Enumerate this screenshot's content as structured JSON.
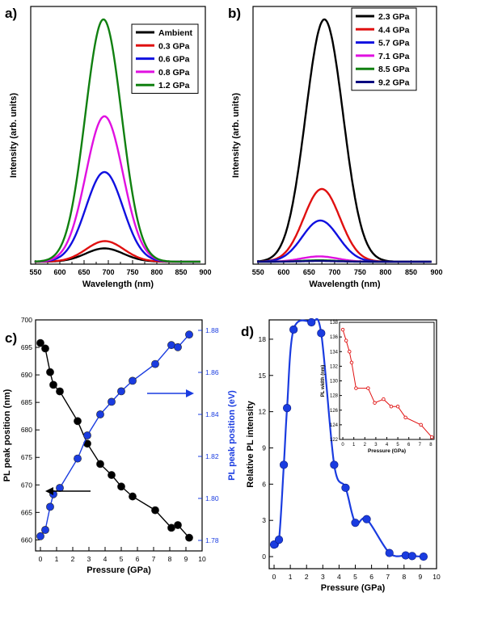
{
  "chart_data": [
    {
      "panel": "a)",
      "type": "line",
      "xlabel": "Wavelength (nm)",
      "ylabel": "Intensity (arb. units)",
      "xlim": [
        540,
        900
      ],
      "xticks": [
        550,
        600,
        650,
        700,
        750,
        800,
        850,
        900
      ],
      "grid": false,
      "legend_position": "top-right",
      "series": [
        {
          "name": "Ambient",
          "color": "#000000",
          "peak_x": 692,
          "width": 55,
          "peak_rel": 0.055
        },
        {
          "name": "0.3 GPa",
          "color": "#e01010",
          "peak_x": 693,
          "width": 55,
          "peak_rel": 0.085
        },
        {
          "name": "0.6 GPa",
          "color": "#1010e0",
          "peak_x": 692,
          "width": 54,
          "peak_rel": 0.37
        },
        {
          "name": "0.8 GPa",
          "color": "#e010e0",
          "peak_x": 692,
          "width": 54,
          "peak_rel": 0.6
        },
        {
          "name": "1.2 GPa",
          "color": "#108010",
          "peak_x": 690,
          "width": 53,
          "peak_rel": 1.0
        }
      ]
    },
    {
      "panel": "b)",
      "type": "line",
      "xlabel": "Wavelength (nm)",
      "ylabel": "Intensity (arb. units)",
      "xlim": [
        540,
        900
      ],
      "xticks": [
        550,
        600,
        650,
        700,
        750,
        800,
        850,
        900
      ],
      "grid": false,
      "legend_position": "top-right",
      "series": [
        {
          "name": "2.3 GPa",
          "color": "#000000",
          "peak_x": 680,
          "width": 52,
          "peak_rel": 1.0
        },
        {
          "name": "4.4 GPa",
          "color": "#e01010",
          "peak_x": 675,
          "width": 50,
          "peak_rel": 0.3
        },
        {
          "name": "5.7 GPa",
          "color": "#1010e0",
          "peak_x": 672,
          "width": 50,
          "peak_rel": 0.17
        },
        {
          "name": "7.1 GPa",
          "color": "#e010e0",
          "peak_x": 670,
          "width": 50,
          "peak_rel": 0.022
        },
        {
          "name": "8.5 GPa",
          "color": "#108010",
          "peak_x": 670,
          "width": 50,
          "peak_rel": 0.006
        },
        {
          "name": "9.2 GPa",
          "color": "#0a0a80",
          "peak_x": 670,
          "width": 50,
          "peak_rel": 0.003
        }
      ]
    },
    {
      "panel": "c)",
      "type": "scatter",
      "xlabel": "Pressure (GPa)",
      "ylabel": "PL peak position (nm)",
      "y2label": "PL peak position (eV)",
      "xlim": [
        -0.3,
        10
      ],
      "ylim": [
        658,
        700
      ],
      "y2lim": [
        1.775,
        1.885
      ],
      "xticks": [
        0,
        1,
        2,
        3,
        4,
        5,
        6,
        7,
        8,
        9,
        10
      ],
      "yticks": [
        660,
        665,
        670,
        675,
        680,
        685,
        690,
        695,
        700
      ],
      "y2ticks": [
        1.78,
        1.8,
        1.82,
        1.84,
        1.86,
        1.88
      ],
      "grid": false,
      "series": [
        {
          "name": "PL peak position (nm)",
          "axis": "left",
          "color": "#000000",
          "x": [
            0.0,
            0.3,
            0.6,
            0.8,
            1.2,
            2.3,
            2.9,
            3.7,
            4.4,
            5.0,
            5.7,
            7.1,
            8.1,
            8.5,
            9.2
          ],
          "y": [
            695.8,
            694.8,
            690.5,
            688.2,
            687.0,
            681.6,
            677.5,
            673.8,
            671.8,
            669.7,
            667.9,
            665.4,
            662.2,
            662.7,
            660.4
          ]
        },
        {
          "name": "PL peak position (eV)",
          "axis": "right",
          "color": "#1a3ce0",
          "x": [
            0.0,
            0.3,
            0.6,
            0.8,
            1.2,
            2.3,
            2.9,
            3.7,
            4.4,
            5.0,
            5.7,
            7.1,
            8.1,
            8.5,
            9.2
          ],
          "y": [
            1.782,
            1.785,
            1.796,
            1.802,
            1.805,
            1.819,
            1.83,
            1.84,
            1.846,
            1.851,
            1.856,
            1.864,
            1.873,
            1.872,
            1.878
          ]
        }
      ]
    },
    {
      "panel": "d)",
      "type": "scatter",
      "xlabel": "Pressure (GPa)",
      "ylabel": "Relative PL intensity",
      "xlim": [
        -0.3,
        10
      ],
      "ylim": [
        -1,
        19.6
      ],
      "xticks": [
        0,
        1,
        2,
        3,
        4,
        5,
        6,
        7,
        8,
        9,
        10
      ],
      "yticks": [
        0,
        3,
        6,
        9,
        12,
        15,
        18
      ],
      "grid": false,
      "series": [
        {
          "name": "Relative PL intensity",
          "color": "#1a3ce0",
          "x": [
            0.0,
            0.3,
            0.6,
            0.8,
            1.2,
            2.3,
            2.9,
            3.7,
            4.4,
            5.0,
            5.7,
            7.1,
            8.1,
            8.5,
            9.2
          ],
          "y": [
            1.0,
            1.4,
            7.6,
            12.3,
            18.8,
            19.4,
            18.5,
            7.6,
            5.7,
            2.8,
            3.1,
            0.3,
            0.1,
            0.05,
            0.0
          ]
        }
      ],
      "inset": {
        "type": "line",
        "xlabel": "Pressure (GPa)",
        "ylabel": "PL width (nm)",
        "xlim": [
          -0.3,
          8.3
        ],
        "ylim": [
          122,
          138
        ],
        "xticks": [
          0,
          1,
          2,
          3,
          4,
          5,
          6,
          7,
          8
        ],
        "yticks": [
          122,
          124,
          126,
          128,
          130,
          132,
          134,
          136,
          138
        ],
        "color": "#e01010",
        "x": [
          0.0,
          0.3,
          0.6,
          0.8,
          1.2,
          2.3,
          2.9,
          3.7,
          4.4,
          5.0,
          5.7,
          7.1,
          8.1
        ],
        "y": [
          137.0,
          135.5,
          134.0,
          132.5,
          129.0,
          129.0,
          127.0,
          127.5,
          126.5,
          126.5,
          125.0,
          124.0,
          122.3
        ]
      }
    }
  ]
}
